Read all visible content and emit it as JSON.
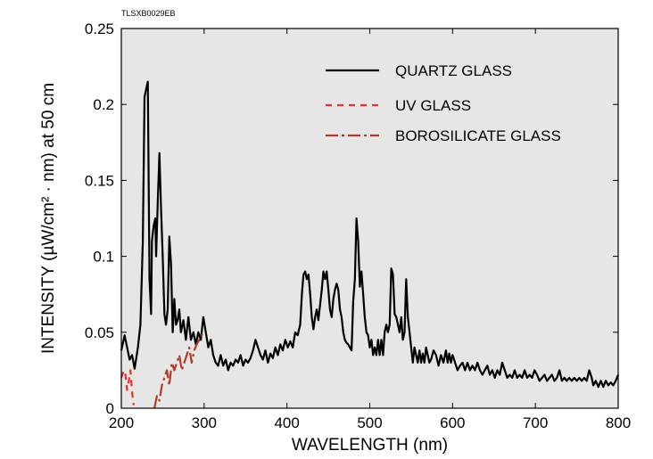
{
  "doc_code": "TLSXB0029EB",
  "chart_data": {
    "type": "line",
    "title": "",
    "xlabel": "WAVELENGTH (nm)",
    "ylabel": "INTENSITY (µW/cm² · nm) at 50 cm",
    "xlim": [
      200,
      800
    ],
    "ylim": [
      0,
      0.25
    ],
    "xticks": [
      200,
      300,
      400,
      500,
      600,
      700,
      800
    ],
    "xtick_labels": [
      "200",
      "300",
      "400",
      "500",
      "600",
      "700",
      "800"
    ],
    "yticks": [
      0,
      0.05,
      0.1,
      0.15,
      0.2,
      0.25
    ],
    "ytick_labels": [
      "0",
      "0.05",
      "0.1",
      "0.15",
      "0.2",
      "0.25"
    ],
    "grid": false,
    "plot_background": "#e6e6e6",
    "legend_position": "top-right",
    "series": [
      {
        "name": "QUARTZ GLASS",
        "color": "#000000",
        "style": "solid",
        "points": [
          [
            200,
            0.038
          ],
          [
            204,
            0.048
          ],
          [
            207,
            0.04
          ],
          [
            210,
            0.032
          ],
          [
            213,
            0.035
          ],
          [
            216,
            0.026
          ],
          [
            220,
            0.04
          ],
          [
            223,
            0.055
          ],
          [
            226,
            0.11
          ],
          [
            228,
            0.205
          ],
          [
            230,
            0.21
          ],
          [
            232,
            0.215
          ],
          [
            234,
            0.085
          ],
          [
            236,
            0.062
          ],
          [
            237,
            0.11
          ],
          [
            239,
            0.12
          ],
          [
            241,
            0.125
          ],
          [
            242,
            0.1
          ],
          [
            244,
            0.135
          ],
          [
            246,
            0.168
          ],
          [
            248,
            0.13
          ],
          [
            250,
            0.1
          ],
          [
            252,
            0.062
          ],
          [
            254,
            0.055
          ],
          [
            256,
            0.065
          ],
          [
            258,
            0.113
          ],
          [
            260,
            0.095
          ],
          [
            262,
            0.05
          ],
          [
            264,
            0.072
          ],
          [
            266,
            0.055
          ],
          [
            268,
            0.058
          ],
          [
            270,
            0.065
          ],
          [
            272,
            0.05
          ],
          [
            275,
            0.058
          ],
          [
            278,
            0.045
          ],
          [
            281,
            0.06
          ],
          [
            284,
            0.045
          ],
          [
            287,
            0.05
          ],
          [
            290,
            0.042
          ],
          [
            293,
            0.05
          ],
          [
            296,
            0.045
          ],
          [
            299,
            0.06
          ],
          [
            302,
            0.05
          ],
          [
            305,
            0.04
          ],
          [
            308,
            0.045
          ],
          [
            311,
            0.035
          ],
          [
            314,
            0.03
          ],
          [
            317,
            0.028
          ],
          [
            320,
            0.035
          ],
          [
            323,
            0.028
          ],
          [
            326,
            0.032
          ],
          [
            329,
            0.025
          ],
          [
            332,
            0.03
          ],
          [
            335,
            0.028
          ],
          [
            338,
            0.032
          ],
          [
            341,
            0.03
          ],
          [
            344,
            0.035
          ],
          [
            347,
            0.028
          ],
          [
            350,
            0.032
          ],
          [
            353,
            0.03
          ],
          [
            356,
            0.033
          ],
          [
            359,
            0.038
          ],
          [
            362,
            0.045
          ],
          [
            365,
            0.04
          ],
          [
            368,
            0.035
          ],
          [
            371,
            0.032
          ],
          [
            374,
            0.038
          ],
          [
            377,
            0.03
          ],
          [
            380,
            0.036
          ],
          [
            383,
            0.033
          ],
          [
            386,
            0.04
          ],
          [
            389,
            0.035
          ],
          [
            392,
            0.042
          ],
          [
            395,
            0.038
          ],
          [
            398,
            0.045
          ],
          [
            401,
            0.04
          ],
          [
            404,
            0.044
          ],
          [
            407,
            0.04
          ],
          [
            410,
            0.05
          ],
          [
            413,
            0.048
          ],
          [
            416,
            0.055
          ],
          [
            418,
            0.075
          ],
          [
            420,
            0.088
          ],
          [
            422,
            0.09
          ],
          [
            424,
            0.085
          ],
          [
            426,
            0.088
          ],
          [
            428,
            0.075
          ],
          [
            430,
            0.06
          ],
          [
            432,
            0.052
          ],
          [
            434,
            0.06
          ],
          [
            436,
            0.065
          ],
          [
            438,
            0.058
          ],
          [
            440,
            0.068
          ],
          [
            442,
            0.078
          ],
          [
            444,
            0.09
          ],
          [
            446,
            0.085
          ],
          [
            448,
            0.09
          ],
          [
            450,
            0.078
          ],
          [
            452,
            0.065
          ],
          [
            454,
            0.06
          ],
          [
            456,
            0.072
          ],
          [
            458,
            0.078
          ],
          [
            460,
            0.082
          ],
          [
            462,
            0.078
          ],
          [
            464,
            0.065
          ],
          [
            466,
            0.06
          ],
          [
            468,
            0.05
          ],
          [
            470,
            0.045
          ],
          [
            472,
            0.043
          ],
          [
            474,
            0.042
          ],
          [
            476,
            0.04
          ],
          [
            478,
            0.038
          ],
          [
            480,
            0.07
          ],
          [
            482,
            0.085
          ],
          [
            484,
            0.125
          ],
          [
            486,
            0.11
          ],
          [
            488,
            0.08
          ],
          [
            490,
            0.09
          ],
          [
            492,
            0.075
          ],
          [
            494,
            0.06
          ],
          [
            496,
            0.05
          ],
          [
            498,
            0.048
          ],
          [
            500,
            0.04
          ],
          [
            502,
            0.045
          ],
          [
            504,
            0.035
          ],
          [
            506,
            0.04
          ],
          [
            508,
            0.035
          ],
          [
            510,
            0.045
          ],
          [
            512,
            0.035
          ],
          [
            514,
            0.045
          ],
          [
            516,
            0.035
          ],
          [
            518,
            0.05
          ],
          [
            520,
            0.055
          ],
          [
            522,
            0.05
          ],
          [
            524,
            0.055
          ],
          [
            526,
            0.092
          ],
          [
            528,
            0.088
          ],
          [
            530,
            0.062
          ],
          [
            532,
            0.06
          ],
          [
            534,
            0.055
          ],
          [
            536,
            0.05
          ],
          [
            538,
            0.06
          ],
          [
            540,
            0.045
          ],
          [
            542,
            0.05
          ],
          [
            544,
            0.085
          ],
          [
            546,
            0.06
          ],
          [
            548,
            0.05
          ],
          [
            550,
            0.04
          ],
          [
            552,
            0.03
          ],
          [
            554,
            0.04
          ],
          [
            556,
            0.035
          ],
          [
            558,
            0.03
          ],
          [
            560,
            0.038
          ],
          [
            562,
            0.03
          ],
          [
            564,
            0.036
          ],
          [
            566,
            0.03
          ],
          [
            568,
            0.04
          ],
          [
            570,
            0.035
          ],
          [
            572,
            0.03
          ],
          [
            574,
            0.032
          ],
          [
            577,
            0.038
          ],
          [
            580,
            0.035
          ],
          [
            583,
            0.028
          ],
          [
            586,
            0.035
          ],
          [
            589,
            0.03
          ],
          [
            592,
            0.038
          ],
          [
            594,
            0.03
          ],
          [
            596,
            0.036
          ],
          [
            598,
            0.03
          ],
          [
            600,
            0.035
          ],
          [
            603,
            0.03
          ],
          [
            606,
            0.025
          ],
          [
            609,
            0.028
          ],
          [
            612,
            0.03
          ],
          [
            615,
            0.025
          ],
          [
            618,
            0.03
          ],
          [
            621,
            0.025
          ],
          [
            624,
            0.028
          ],
          [
            627,
            0.025
          ],
          [
            630,
            0.03
          ],
          [
            633,
            0.025
          ],
          [
            636,
            0.022
          ],
          [
            639,
            0.025
          ],
          [
            642,
            0.028
          ],
          [
            645,
            0.022
          ],
          [
            648,
            0.025
          ],
          [
            651,
            0.02
          ],
          [
            654,
            0.025
          ],
          [
            657,
            0.022
          ],
          [
            660,
            0.03
          ],
          [
            663,
            0.025
          ],
          [
            666,
            0.02
          ],
          [
            669,
            0.022
          ],
          [
            672,
            0.02
          ],
          [
            675,
            0.025
          ],
          [
            678,
            0.02
          ],
          [
            681,
            0.022
          ],
          [
            684,
            0.02
          ],
          [
            687,
            0.025
          ],
          [
            690,
            0.02
          ],
          [
            693,
            0.022
          ],
          [
            696,
            0.02
          ],
          [
            699,
            0.025
          ],
          [
            702,
            0.022
          ],
          [
            705,
            0.018
          ],
          [
            708,
            0.02
          ],
          [
            711,
            0.022
          ],
          [
            714,
            0.018
          ],
          [
            717,
            0.02
          ],
          [
            720,
            0.022
          ],
          [
            723,
            0.018
          ],
          [
            726,
            0.02
          ],
          [
            729,
            0.025
          ],
          [
            732,
            0.018
          ],
          [
            735,
            0.02
          ],
          [
            738,
            0.018
          ],
          [
            741,
            0.02
          ],
          [
            744,
            0.018
          ],
          [
            747,
            0.02
          ],
          [
            750,
            0.018
          ],
          [
            753,
            0.02
          ],
          [
            756,
            0.018
          ],
          [
            759,
            0.02
          ],
          [
            762,
            0.018
          ],
          [
            765,
            0.025
          ],
          [
            768,
            0.02
          ],
          [
            770,
            0.015
          ],
          [
            773,
            0.018
          ],
          [
            776,
            0.014
          ],
          [
            779,
            0.018
          ],
          [
            782,
            0.014
          ],
          [
            785,
            0.018
          ],
          [
            788,
            0.015
          ],
          [
            791,
            0.017
          ],
          [
            794,
            0.015
          ],
          [
            797,
            0.018
          ],
          [
            800,
            0.022
          ]
        ]
      },
      {
        "name": "UV GLASS",
        "color": "#e8312a",
        "style": "dashed",
        "points": [
          [
            200,
            0.02
          ],
          [
            203,
            0.025
          ],
          [
            205,
            0.022
          ],
          [
            207,
            0.012
          ],
          [
            209,
            0.018
          ],
          [
            211,
            0.025
          ],
          [
            213,
            0.01
          ],
          [
            215,
            0.002
          ]
        ]
      },
      {
        "name": "BOROSILICATE GLASS",
        "color": "#b23a2a",
        "style": "dashdot",
        "points": [
          [
            240,
            0.0
          ],
          [
            243,
            0.008
          ],
          [
            246,
            0.005
          ],
          [
            249,
            0.015
          ],
          [
            252,
            0.02
          ],
          [
            255,
            0.025
          ],
          [
            258,
            0.015
          ],
          [
            261,
            0.03
          ],
          [
            264,
            0.025
          ],
          [
            267,
            0.03
          ],
          [
            270,
            0.035
          ],
          [
            273,
            0.025
          ],
          [
            276,
            0.03
          ],
          [
            279,
            0.035
          ],
          [
            282,
            0.04
          ],
          [
            285,
            0.03
          ],
          [
            288,
            0.038
          ],
          [
            291,
            0.042
          ],
          [
            294,
            0.045
          ],
          [
            297,
            0.048
          ],
          [
            300,
            0.05
          ]
        ]
      }
    ]
  }
}
